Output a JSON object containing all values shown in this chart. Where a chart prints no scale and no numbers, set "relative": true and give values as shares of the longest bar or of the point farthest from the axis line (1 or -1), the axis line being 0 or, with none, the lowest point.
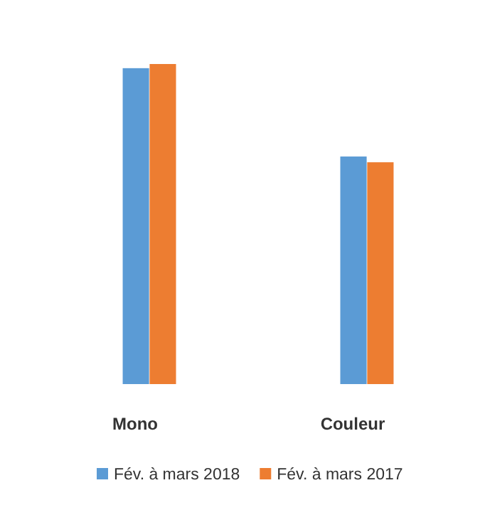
{
  "chart_data": {
    "type": "bar",
    "relative": true,
    "categories": [
      "Mono",
      "Couleur"
    ],
    "series": [
      {
        "name": "Fév. à mars 2018",
        "color": "#5b9bd5",
        "values": [
          0.987,
          0.711
        ]
      },
      {
        "name": "Fév. à mars 2017",
        "color": "#ed7d31",
        "values": [
          1,
          0.693
        ]
      }
    ],
    "legend": "bottom",
    "grid": false
  }
}
